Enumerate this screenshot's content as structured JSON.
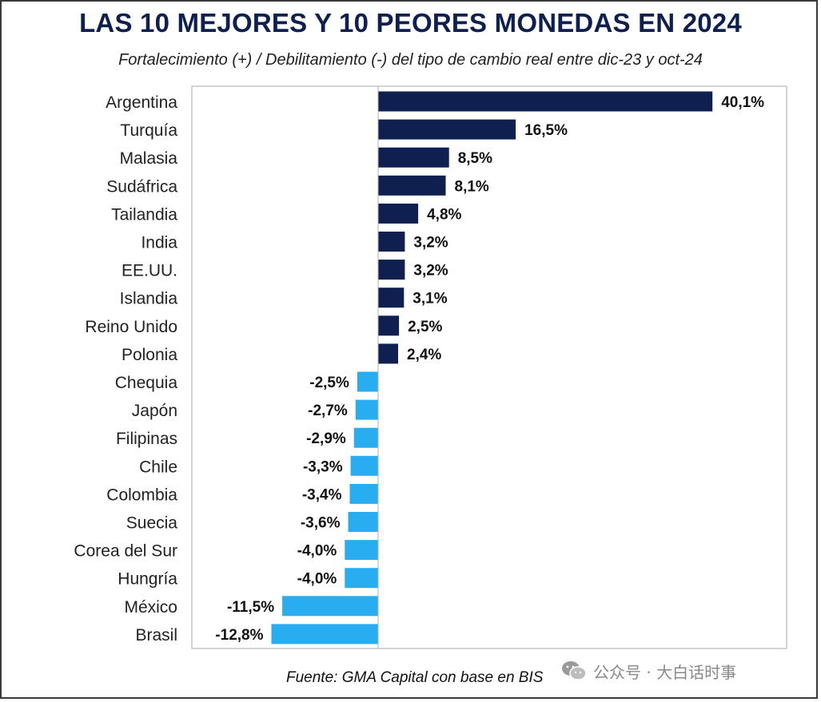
{
  "chart_data": {
    "type": "bar",
    "orientation": "horizontal",
    "title": "LAS 10 MEJORES Y 10 PEORES MONEDAS EN 2024",
    "subtitle": "Fortalecimiento (+) / Debilitamiento (-) del tipo de cambio real entre dic-23 y oct-24",
    "categories": [
      "Argentina",
      "Turquía",
      "Malasia",
      "Sudáfrica",
      "Tailandia",
      "India",
      "EE.UU.",
      "Islandia",
      "Reino Unido",
      "Polonia",
      "Chequia",
      "Japón",
      "Filipinas",
      "Chile",
      "Colombia",
      "Suecia",
      "Corea del Sur",
      "Hungría",
      "México",
      "Brasil"
    ],
    "values": [
      40.1,
      16.5,
      8.5,
      8.1,
      4.8,
      3.2,
      3.2,
      3.1,
      2.5,
      2.4,
      -2.5,
      -2.7,
      -2.9,
      -3.3,
      -3.4,
      -3.6,
      -4.0,
      -4.0,
      -11.5,
      -12.8
    ],
    "value_labels": [
      "40,1%",
      "16,5%",
      "8,5%",
      "8,1%",
      "4,8%",
      "3,2%",
      "3,2%",
      "3,1%",
      "2,5%",
      "2,4%",
      "-2,5%",
      "-2,7%",
      "-2,9%",
      "-3,3%",
      "-3,4%",
      "-3,6%",
      "-4,0%",
      "-4,0%",
      "-11,5%",
      "-12,8%"
    ],
    "xlim": [
      -13,
      49
    ],
    "grid": false,
    "colors": {
      "positive": "#0f1f4f",
      "negative": "#28aef0"
    }
  },
  "source": "Fuente: GMA Capital con base en BIS",
  "watermark": {
    "icon": "wechat-icon",
    "text": "公众号 · 大白话时事"
  }
}
